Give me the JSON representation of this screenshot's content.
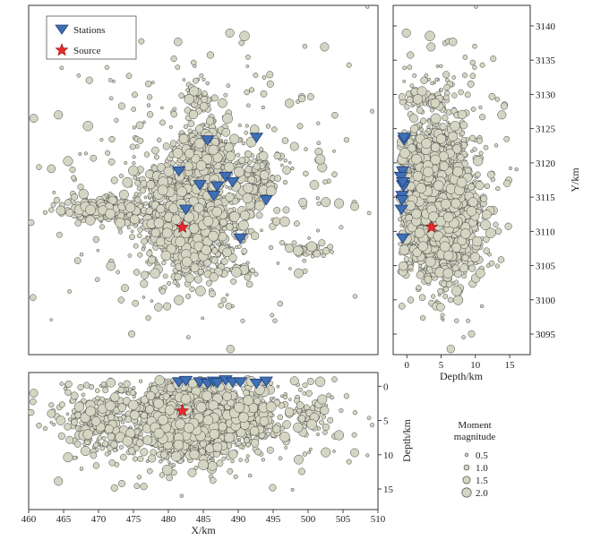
{
  "chart_data": {
    "type": "scatter",
    "title": "",
    "colors": {
      "event_fill": "#d5d5c3",
      "event_stroke": "#333333",
      "station_fill": "#3f6fb5",
      "source_fill": "#e8282b"
    },
    "legend_main": {
      "stations_label": "Stations",
      "source_label": "Source",
      "placement": "top-left"
    },
    "legend_mag": {
      "title_line1": "Moment",
      "title_line2": "magnitude",
      "items": [
        {
          "label": "0.5",
          "mag": 0.5
        },
        {
          "label": "1.0",
          "mag": 1.0
        },
        {
          "label": "1.5",
          "mag": 1.5
        },
        {
          "label": "2.0",
          "mag": 2.0
        }
      ]
    },
    "map_view": {
      "xlim": [
        460,
        510
      ],
      "ylim": [
        3092,
        3143
      ],
      "y_ticks": [
        3095,
        3100,
        3105,
        3110,
        3115,
        3120,
        3125,
        3130,
        3135,
        3140
      ],
      "ylabel": "Y/km"
    },
    "depth_y_view": {
      "xlim": [
        -2,
        18
      ],
      "x_ticks": [
        0,
        5,
        10,
        15
      ],
      "xlabel": "Depth/km"
    },
    "x_depth_view": {
      "xlim": [
        460,
        510
      ],
      "ylim": [
        -2,
        18
      ],
      "x_ticks": [
        460,
        465,
        470,
        475,
        480,
        485,
        490,
        495,
        500,
        505,
        510
      ],
      "y_ticks": [
        0,
        5,
        10,
        15
      ],
      "xlabel": "X/km",
      "ylabel": "Depth/km"
    },
    "stations": [
      {
        "x": 481.5,
        "y": 3118.8,
        "depth": -0.6
      },
      {
        "x": 482.5,
        "y": 3113.2,
        "depth": -0.8
      },
      {
        "x": 484.5,
        "y": 3116.8,
        "depth": -0.6
      },
      {
        "x": 485.6,
        "y": 3123.3,
        "depth": -0.4
      },
      {
        "x": 486.5,
        "y": 3115.2,
        "depth": -0.7
      },
      {
        "x": 487.0,
        "y": 3116.6,
        "depth": -0.5
      },
      {
        "x": 488.2,
        "y": 3118.0,
        "depth": -0.9
      },
      {
        "x": 489.2,
        "y": 3117.2,
        "depth": -0.6
      },
      {
        "x": 490.3,
        "y": 3109.0,
        "depth": -0.6
      },
      {
        "x": 492.6,
        "y": 3123.7,
        "depth": -0.4
      },
      {
        "x": 494.0,
        "y": 3114.6,
        "depth": -0.7
      }
    ],
    "source": {
      "x": 482.0,
      "y": 3110.6,
      "depth": 3.6
    },
    "event_clusters": [
      {
        "name": "main",
        "n": 1500,
        "cx": 483.0,
        "cy": 3112.0,
        "sx": 3.2,
        "sy": 4.0,
        "d_mean": 5.0,
        "d_sd": 2.6
      },
      {
        "name": "north",
        "n": 280,
        "cx": 485.5,
        "cy": 3121.5,
        "sx": 1.8,
        "sy": 2.0,
        "d_mean": 3.5,
        "d_sd": 2.0
      },
      {
        "name": "northeast",
        "n": 160,
        "cx": 492.8,
        "cy": 3117.3,
        "sx": 1.1,
        "sy": 1.6,
        "d_mean": 4.5,
        "d_sd": 2.0
      },
      {
        "name": "west-band",
        "n": 260,
        "cx": 470.5,
        "cy": 3113.2,
        "sx": 3.0,
        "sy": 1.0,
        "d_mean": 4.8,
        "d_sd": 2.3
      },
      {
        "name": "east-spot",
        "n": 45,
        "cx": 500.0,
        "cy": 3107.2,
        "sx": 1.2,
        "sy": 0.4,
        "d_mean": 4.0,
        "d_sd": 1.5
      },
      {
        "name": "south-spot",
        "n": 25,
        "cx": 490.5,
        "cy": 3104.3,
        "sx": 0.8,
        "sy": 0.3,
        "d_mean": 5.0,
        "d_sd": 1.5
      },
      {
        "name": "north-tail",
        "n": 55,
        "cx": 484.0,
        "cy": 3129.5,
        "sx": 0.9,
        "sy": 1.5,
        "d_mean": 3.5,
        "d_sd": 2.0
      },
      {
        "name": "background",
        "n": 380,
        "cx": 485.0,
        "cy": 3117.0,
        "sx": 11.0,
        "sy": 10.0,
        "d_mean": 5.5,
        "d_sd": 4.0
      }
    ]
  }
}
